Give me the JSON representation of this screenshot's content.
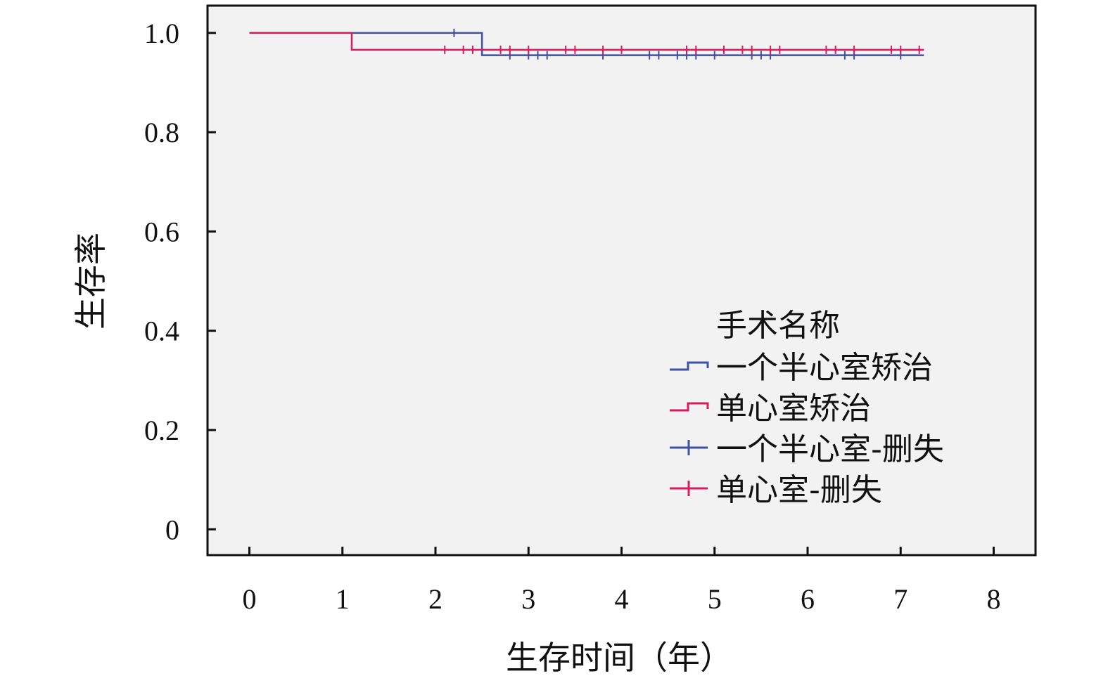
{
  "chart_data": {
    "type": "line",
    "subtype": "kaplan-meier-step",
    "title": "",
    "xlabel": "生存时间（年）",
    "ylabel": "生存率",
    "xlim": [
      -0.45,
      8.45
    ],
    "ylim": [
      -0.052,
      1.055
    ],
    "xticks": [
      0,
      1,
      2,
      3,
      4,
      5,
      6,
      7,
      8
    ],
    "yticks": [
      0,
      0.2,
      0.4,
      0.6,
      0.8,
      1.0
    ],
    "ytick_labels": [
      "0",
      "0.2",
      "0.4",
      "0.6",
      "0.8",
      "1.0"
    ],
    "grid": false,
    "plot_background": "#f2f2f2",
    "legend": {
      "title": "手术名称",
      "position": "lower-right",
      "entries": [
        {
          "label": "一个半心室矫治",
          "symbol": "step",
          "color": "#3f51a3"
        },
        {
          "label": "单心室矫治",
          "symbol": "step",
          "color": "#d81b60"
        },
        {
          "label": "一个半心室-删失",
          "symbol": "censor",
          "color": "#3f51a3"
        },
        {
          "label": "单心室-删失",
          "symbol": "censor",
          "color": "#d81b60"
        }
      ]
    },
    "series": [
      {
        "name": "一个半心室矫治",
        "color": "#3f51a3",
        "steps": [
          [
            0,
            1.0
          ],
          [
            1.1,
            1.0
          ],
          [
            2.5,
            0.955
          ],
          [
            7.25,
            0.955
          ]
        ],
        "censored": [
          2.2,
          2.8,
          3.0,
          3.1,
          3.2,
          3.8,
          4.3,
          4.4,
          4.6,
          4.7,
          4.8,
          5.0,
          5.4,
          5.5,
          5.6,
          6.4,
          6.5,
          7.0
        ]
      },
      {
        "name": "单心室矫治",
        "color": "#d81b60",
        "steps": [
          [
            0,
            1.0
          ],
          [
            1.1,
            0.966
          ],
          [
            7.25,
            0.966
          ]
        ],
        "censored": [
          2.1,
          2.3,
          2.4,
          2.7,
          2.8,
          3.0,
          3.4,
          3.5,
          3.8,
          4.0,
          4.7,
          4.8,
          5.1,
          5.3,
          5.4,
          5.6,
          5.7,
          6.2,
          6.3,
          6.5,
          6.9,
          7.0,
          7.2
        ]
      }
    ]
  }
}
